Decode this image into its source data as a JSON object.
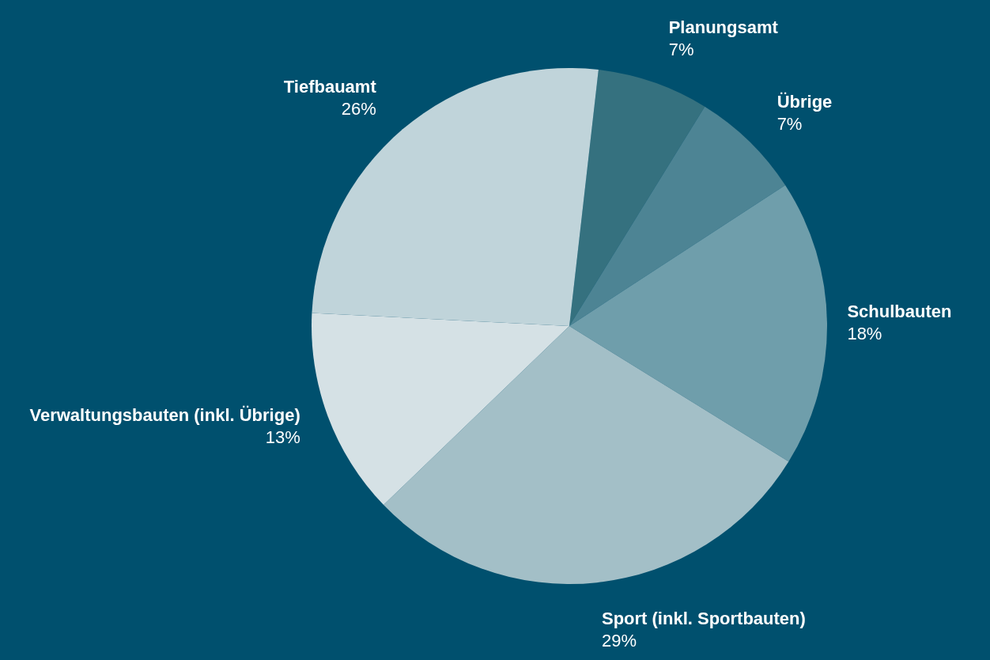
{
  "chart_data": {
    "type": "pie",
    "categories": [
      "Planungsamt",
      "Übrige",
      "Schulbauten",
      "Sport (inkl. Sportbauten)",
      "Verwaltungsbauten (inkl. Übrige)",
      "Tiefbauamt"
    ],
    "values": [
      7,
      7,
      18,
      29,
      13,
      26
    ],
    "value_labels": [
      "7%",
      "7%",
      "18%",
      "29%",
      "13%",
      "26%"
    ],
    "colors": [
      "#35717f",
      "#4d8494",
      "#6f9eab",
      "#a3bfc7",
      "#d5e1e5",
      "#c0d4da"
    ]
  }
}
